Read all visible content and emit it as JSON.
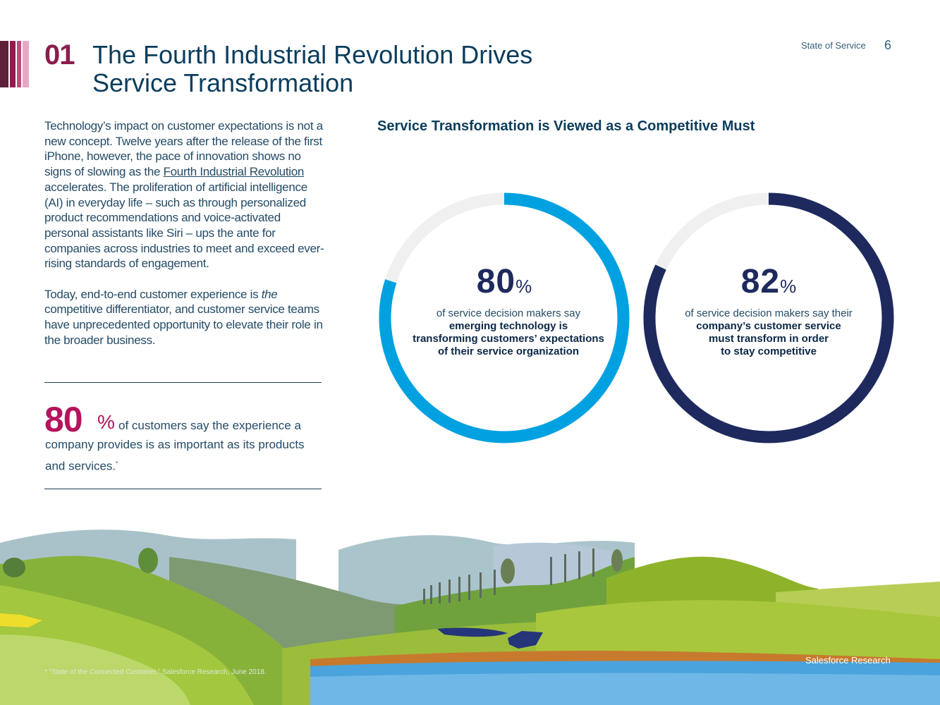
{
  "header": {
    "section_number": "01",
    "title_line1": "The Fourth Industrial Revolution Drives",
    "title_line2": "Service Transformation",
    "report_label": "State of Service",
    "page_number": "6"
  },
  "intro": {
    "p1_before_link": "Technology’s impact on customer expectations is not a new concept. Twelve years after the release of the first iPhone, however, the pace of innovation shows no signs of slowing as the ",
    "p1_link": "Fourth Industrial Revolution",
    "p1_after_link": " accelerates. The proliferation of artificial intelligence (AI) in everyday life – such as through personalized product recommendations and voice-activated personal assistants like Siri – ups the ante for companies across industries to meet and exceed ever-rising standards of engagement.",
    "p2_before": "Today, end-to-end customer experience is ",
    "p2_em": "the",
    "p2_after": " competitive differentiator, and customer service teams have unprecedented opportunity to elevate their role in the broader business."
  },
  "callout": {
    "value": "80",
    "unit": "%",
    "text": "of customers say the experience a company provides is as important as its products and services.",
    "footnote_mark": "*"
  },
  "chart_data": {
    "type": "donut",
    "title": "Service Transformation is Viewed as a Competitive Must",
    "series": [
      {
        "name": "emerging-technology",
        "value": 80,
        "unit": "%",
        "label_plain": "of service decision makers say",
        "label_bold_1": "emerging technology is",
        "label_bold_2": "transforming customers’ expectations",
        "label_bold_3": "of their service organization",
        "color": "#00a1e0"
      },
      {
        "name": "must-transform",
        "value": 82,
        "unit": "%",
        "label_plain": "of service decision makers say their",
        "label_bold_1": "company’s customer service",
        "label_bold_2": "must transform in order",
        "label_bold_3": "to stay competitive",
        "color": "#1e2a5e"
      }
    ],
    "track_color": "#f0f0f0"
  },
  "footer": {
    "footnote": "* “State of the Connected Customer,” Salesforce Research, June 2018.",
    "source": "Salesforce Research"
  },
  "colors": {
    "accent_magenta": "#b5135d",
    "section_num": "#8a1e4e",
    "title": "#0b3d5c"
  }
}
